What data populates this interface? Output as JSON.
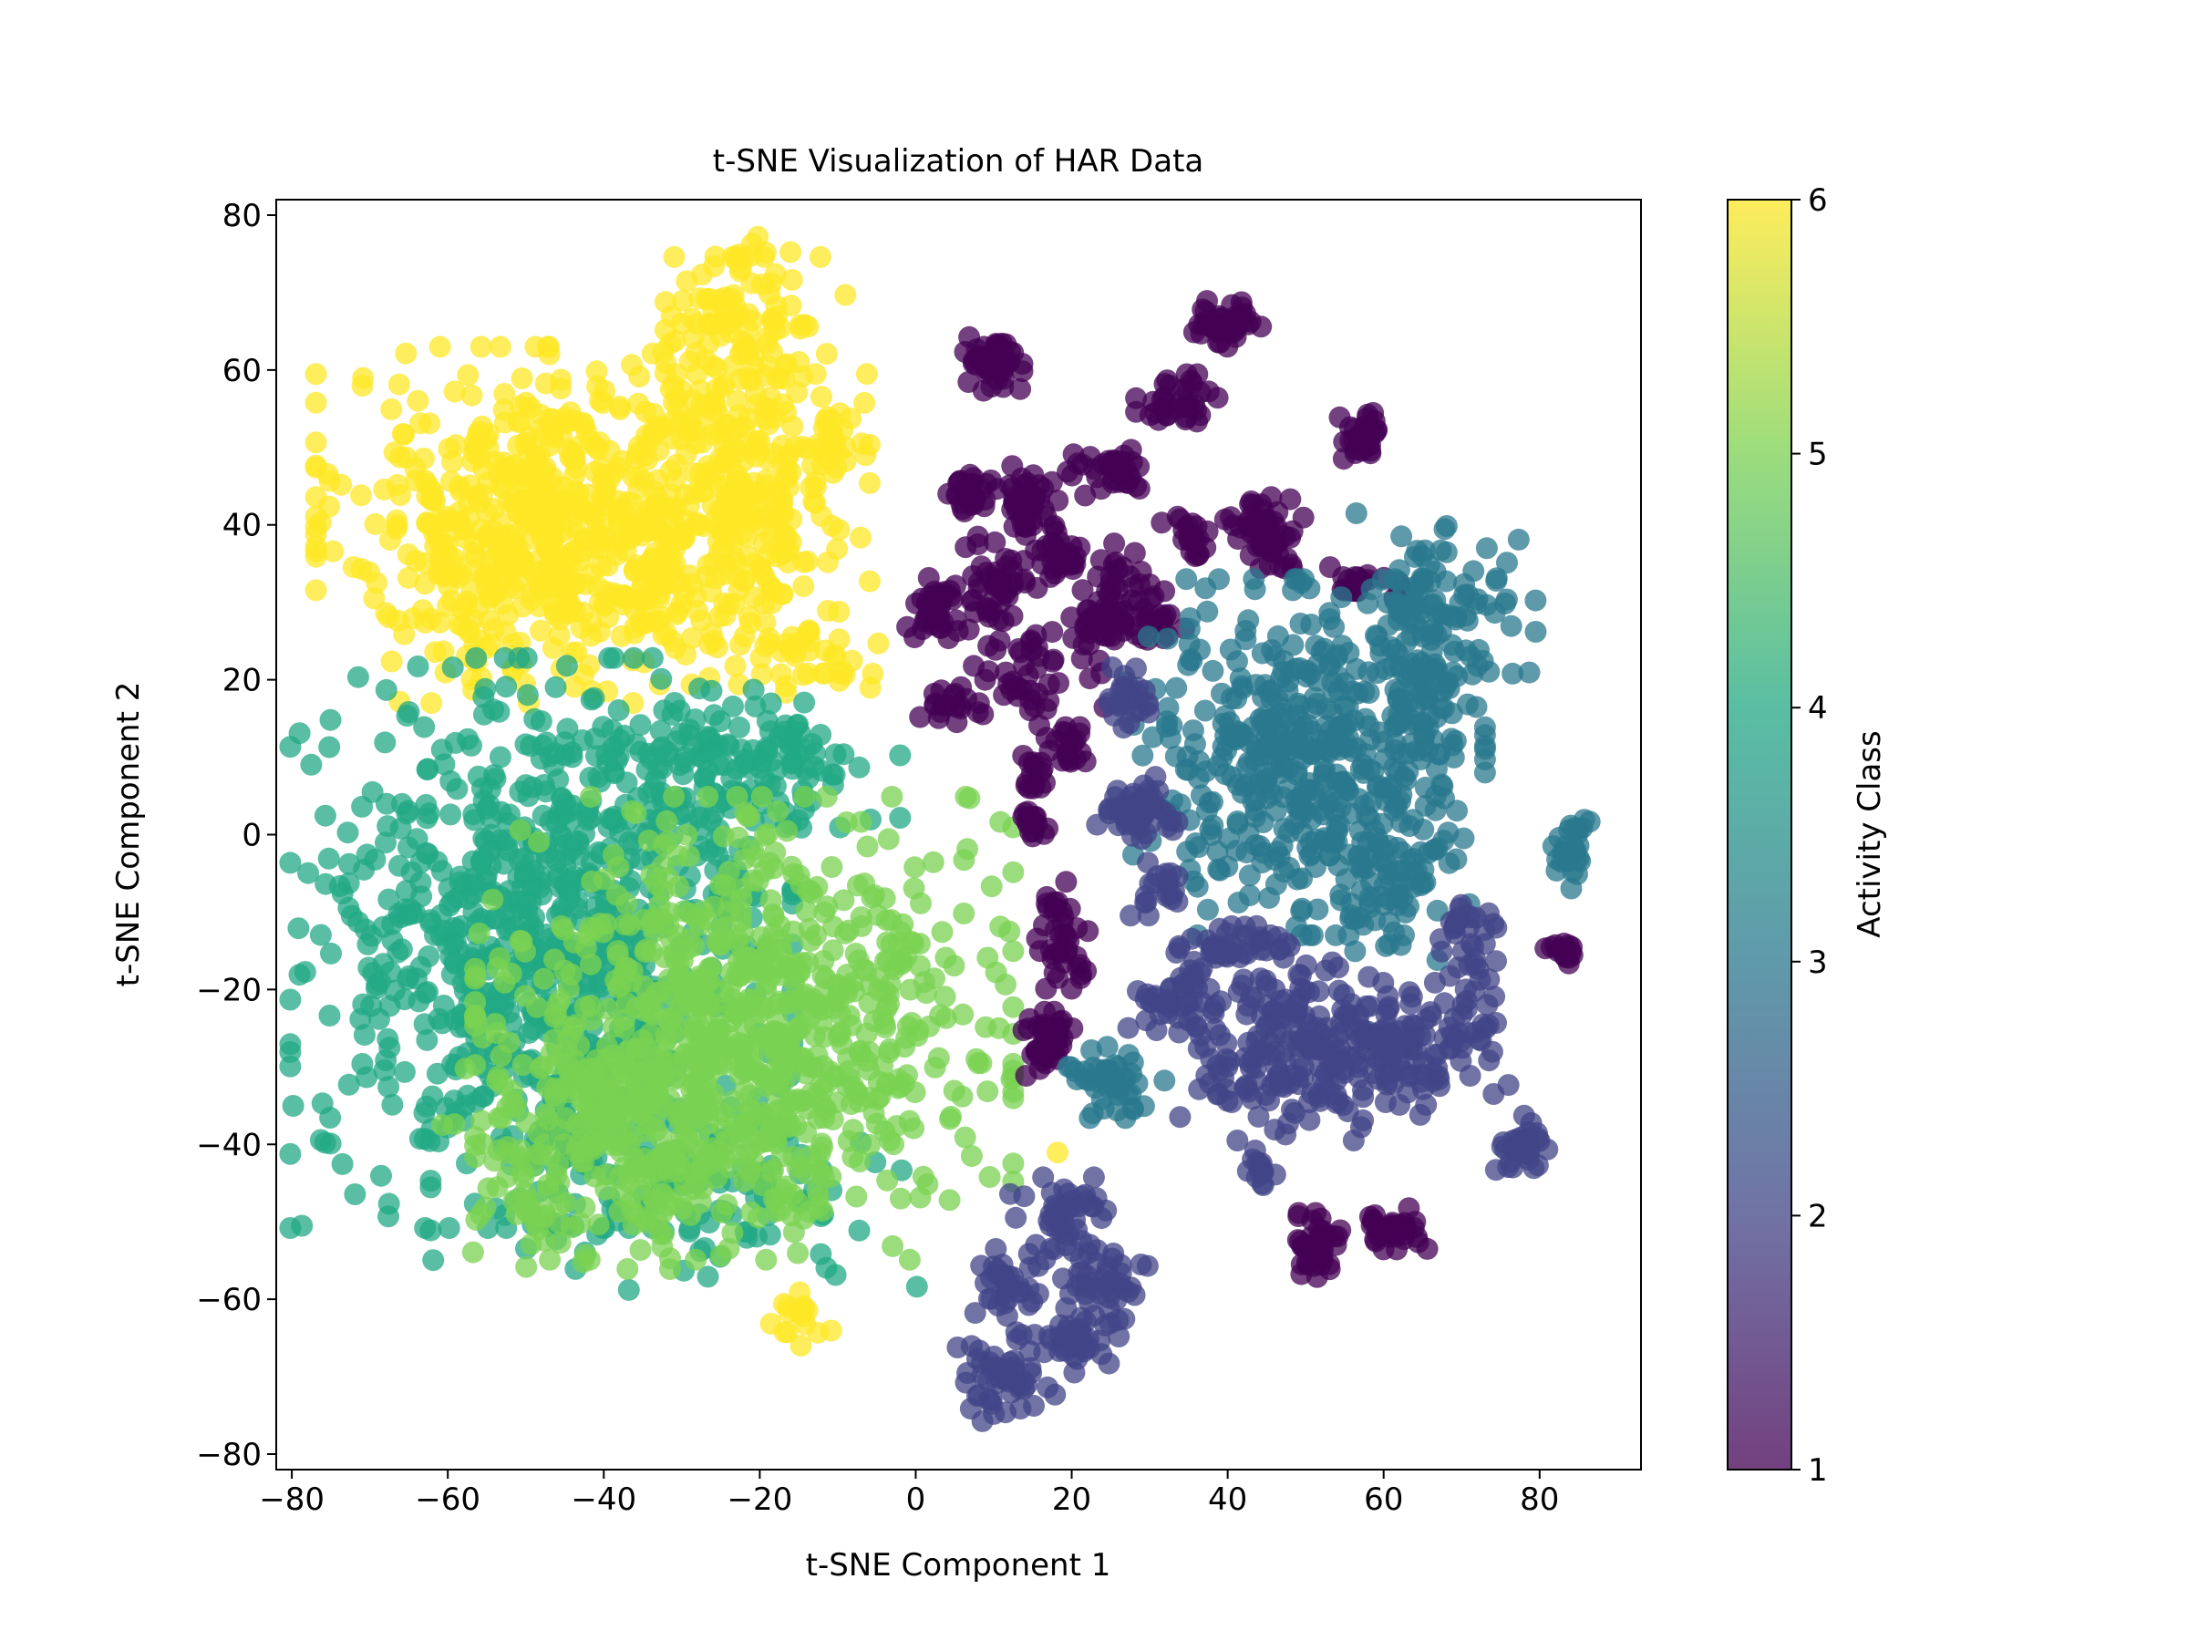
{
  "chart_data": {
    "type": "scatter",
    "title": "t-SNE Visualization of HAR Data",
    "xlabel": "t-SNE Component 1",
    "ylabel": "t-SNE Component 2",
    "xlim": [
      -82,
      93
    ],
    "ylim": [
      -82,
      82
    ],
    "xticks": [
      -80,
      -60,
      -40,
      -20,
      0,
      20,
      40,
      60,
      80
    ],
    "yticks": [
      -80,
      -60,
      -40,
      -20,
      0,
      20,
      40,
      60,
      80
    ],
    "xtick_labels": [
      "−80",
      "−60",
      "−40",
      "−20",
      "0",
      "20",
      "40",
      "60",
      "80"
    ],
    "ytick_labels": [
      "−80",
      "−60",
      "−40",
      "−20",
      "0",
      "20",
      "40",
      "60",
      "80"
    ],
    "grid": false,
    "marker_alpha": 0.75,
    "colormap": "viridis",
    "colorbar": {
      "label": "Activity Class",
      "range": [
        1,
        6
      ],
      "ticks": [
        1,
        2,
        3,
        4,
        5,
        6
      ],
      "tick_labels": [
        "1",
        "2",
        "3",
        "4",
        "5",
        "6"
      ],
      "stops": [
        "#440154",
        "#414487",
        "#2a788e",
        "#22a884",
        "#7ad151",
        "#fde725"
      ]
    },
    "class_colors": {
      "1": "#440154",
      "2": "#414487",
      "3": "#2a788e",
      "4": "#22a884",
      "5": "#7ad151",
      "6": "#fde725"
    },
    "clusters": [
      {
        "class": 6,
        "cx": -47,
        "cy": 40,
        "sx": 13,
        "sy": 10,
        "n": 620
      },
      {
        "class": 6,
        "cx": -22,
        "cy": 47,
        "sx": 7,
        "sy": 12,
        "n": 320
      },
      {
        "class": 6,
        "cx": -24,
        "cy": 68,
        "sx": 4,
        "sy": 4,
        "n": 50
      },
      {
        "class": 6,
        "cx": -10,
        "cy": 52,
        "sx": 2,
        "sy": 2,
        "n": 20
      },
      {
        "class": 6,
        "cx": -14,
        "cy": 22,
        "sx": 4,
        "sy": 3,
        "n": 30
      },
      {
        "class": 6,
        "cx": -15,
        "cy": -63,
        "sx": 2,
        "sy": 2,
        "n": 18
      },
      {
        "class": 6,
        "cx": 18.5,
        "cy": -41,
        "sx": 0.3,
        "sy": 0.3,
        "n": 1
      },
      {
        "class": 4,
        "cx": -48,
        "cy": -14,
        "sx": 14,
        "sy": 16,
        "n": 800
      },
      {
        "class": 4,
        "cx": -25,
        "cy": 8,
        "sx": 10,
        "sy": 5,
        "n": 160
      },
      {
        "class": 4,
        "cx": -30,
        "cy": -45,
        "sx": 14,
        "sy": 6,
        "n": 120
      },
      {
        "class": 5,
        "cx": -22,
        "cy": -25,
        "sx": 15,
        "sy": 13,
        "n": 850
      },
      {
        "class": 5,
        "cx": -40,
        "cy": -40,
        "sx": 9,
        "sy": 7,
        "n": 200
      },
      {
        "class": 1,
        "cx": 10,
        "cy": 61,
        "sx": 1.6,
        "sy": 1.6,
        "n": 45
      },
      {
        "class": 1,
        "cx": 40,
        "cy": 66,
        "sx": 2,
        "sy": 1.3,
        "n": 45
      },
      {
        "class": 1,
        "cx": 34,
        "cy": 56,
        "sx": 2.5,
        "sy": 1.5,
        "n": 35
      },
      {
        "class": 1,
        "cx": 57,
        "cy": 51,
        "sx": 1.5,
        "sy": 1.5,
        "n": 30
      },
      {
        "class": 1,
        "cx": 7,
        "cy": 44,
        "sx": 1.5,
        "sy": 1.5,
        "n": 25
      },
      {
        "class": 1,
        "cx": 15,
        "cy": 43,
        "sx": 2,
        "sy": 2,
        "n": 45
      },
      {
        "class": 1,
        "cx": 25,
        "cy": 47,
        "sx": 2.5,
        "sy": 1.5,
        "n": 35
      },
      {
        "class": 1,
        "cx": 45,
        "cy": 39,
        "sx": 2.5,
        "sy": 2,
        "n": 55
      },
      {
        "class": 1,
        "cx": 11,
        "cy": 33,
        "sx": 2,
        "sy": 3,
        "n": 45
      },
      {
        "class": 1,
        "cx": 18,
        "cy": 36,
        "sx": 1.5,
        "sy": 1.5,
        "n": 25
      },
      {
        "class": 1,
        "cx": 26,
        "cy": 33,
        "sx": 2,
        "sy": 2,
        "n": 25
      },
      {
        "class": 1,
        "cx": 35,
        "cy": 39,
        "sx": 1.5,
        "sy": 1.5,
        "n": 20
      },
      {
        "class": 1,
        "cx": 3,
        "cy": 29,
        "sx": 1.8,
        "sy": 1.8,
        "n": 40
      },
      {
        "class": 1,
        "cx": 24,
        "cy": 28,
        "sx": 2,
        "sy": 1.5,
        "n": 35
      },
      {
        "class": 1,
        "cx": 31,
        "cy": 28,
        "sx": 1.5,
        "sy": 1.5,
        "n": 20
      },
      {
        "class": 1,
        "cx": 15,
        "cy": 21,
        "sx": 4,
        "sy": 3,
        "n": 50
      },
      {
        "class": 1,
        "cx": 4,
        "cy": 17,
        "sx": 1.5,
        "sy": 1.5,
        "n": 15
      },
      {
        "class": 1,
        "cx": 58,
        "cy": 32,
        "sx": 3,
        "sy": 1.2,
        "n": 20
      },
      {
        "class": 1,
        "cx": 20,
        "cy": 11,
        "sx": 1.5,
        "sy": 1.5,
        "n": 20
      },
      {
        "class": 1,
        "cx": 15,
        "cy": 8,
        "sx": 1.2,
        "sy": 1.2,
        "n": 15
      },
      {
        "class": 1,
        "cx": 15,
        "cy": 2,
        "sx": 1.2,
        "sy": 1.2,
        "n": 15
      },
      {
        "class": 1,
        "cx": 19,
        "cy": -13,
        "sx": 1.5,
        "sy": 3,
        "n": 40
      },
      {
        "class": 1,
        "cx": 17,
        "cy": -27,
        "sx": 1.8,
        "sy": 1.8,
        "n": 40
      },
      {
        "class": 1,
        "cx": 51,
        "cy": -53,
        "sx": 1.5,
        "sy": 1.8,
        "n": 40
      },
      {
        "class": 1,
        "cx": 61,
        "cy": -51,
        "sx": 2,
        "sy": 1.2,
        "n": 40
      },
      {
        "class": 1,
        "cx": 83,
        "cy": -15,
        "sx": 1,
        "sy": 1,
        "n": 15
      },
      {
        "class": 3,
        "cx": 50,
        "cy": 10,
        "sx": 10,
        "sy": 10,
        "n": 460
      },
      {
        "class": 3,
        "cx": 68,
        "cy": 30,
        "sx": 5,
        "sy": 5,
        "n": 90
      },
      {
        "class": 3,
        "cx": 65,
        "cy": 15,
        "sx": 3,
        "sy": 5,
        "n": 60
      },
      {
        "class": 3,
        "cx": 60,
        "cy": -7,
        "sx": 3,
        "sy": 4,
        "n": 60
      },
      {
        "class": 3,
        "cx": 84,
        "cy": -2,
        "sx": 1.2,
        "sy": 2.5,
        "n": 30
      },
      {
        "class": 3,
        "cx": 25,
        "cy": -32,
        "sx": 3,
        "sy": 2,
        "n": 45
      },
      {
        "class": 2,
        "cx": 29,
        "cy": 3,
        "sx": 2.5,
        "sy": 2,
        "n": 50
      },
      {
        "class": 2,
        "cx": 28,
        "cy": 17,
        "sx": 1.5,
        "sy": 2,
        "n": 25
      },
      {
        "class": 2,
        "cx": 31,
        "cy": -7,
        "sx": 1.5,
        "sy": 1.5,
        "n": 20
      },
      {
        "class": 2,
        "cx": 41,
        "cy": -15,
        "sx": 4,
        "sy": 2,
        "n": 50
      },
      {
        "class": 2,
        "cx": 33,
        "cy": -21,
        "sx": 2.5,
        "sy": 2.5,
        "n": 40
      },
      {
        "class": 2,
        "cx": 50,
        "cy": -28,
        "sx": 7,
        "sy": 5,
        "n": 220
      },
      {
        "class": 2,
        "cx": 63,
        "cy": -28,
        "sx": 3,
        "sy": 3,
        "n": 50
      },
      {
        "class": 2,
        "cx": 71,
        "cy": -22,
        "sx": 2.5,
        "sy": 5,
        "n": 45
      },
      {
        "class": 2,
        "cx": 71,
        "cy": -11,
        "sx": 1.5,
        "sy": 1.5,
        "n": 20
      },
      {
        "class": 2,
        "cx": 78,
        "cy": -40,
        "sx": 1.8,
        "sy": 1.8,
        "n": 30
      },
      {
        "class": 2,
        "cx": 44,
        "cy": -43,
        "sx": 1.2,
        "sy": 1.2,
        "n": 15
      },
      {
        "class": 2,
        "cx": 19,
        "cy": -50,
        "sx": 3,
        "sy": 2.5,
        "n": 45
      },
      {
        "class": 2,
        "cx": 12,
        "cy": -58,
        "sx": 2,
        "sy": 3,
        "n": 40
      },
      {
        "class": 2,
        "cx": 24,
        "cy": -58,
        "sx": 2.5,
        "sy": 2.5,
        "n": 40
      },
      {
        "class": 2,
        "cx": 21,
        "cy": -65,
        "sx": 2.5,
        "sy": 2,
        "n": 40
      },
      {
        "class": 2,
        "cx": 11,
        "cy": -70,
        "sx": 3,
        "sy": 2.5,
        "n": 50
      }
    ]
  }
}
